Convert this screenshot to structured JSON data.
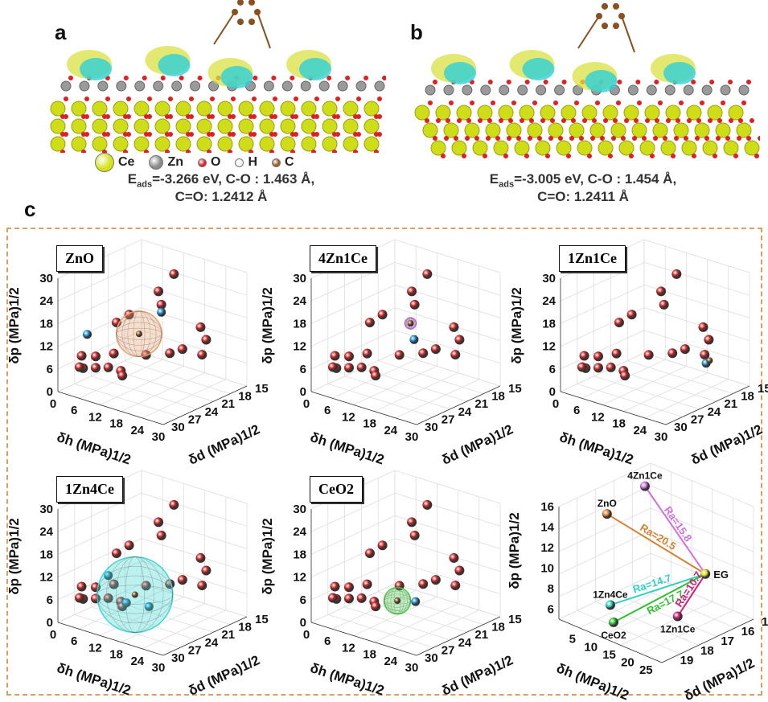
{
  "panel_labels": {
    "a": "a",
    "b": "b",
    "c": "c"
  },
  "legend": [
    {
      "label": "Ce",
      "color": "#d4e21a"
    },
    {
      "label": "Zn",
      "color": "#8a8a8a"
    },
    {
      "label": "O",
      "color": "#e02020"
    },
    {
      "label": "H",
      "color": "#f0f0f0"
    },
    {
      "label": "C",
      "color": "#9a5a2a"
    }
  ],
  "caption_a": {
    "eads_prefix": "E",
    "eads_sub": "ads",
    "line1": "=-3.266 eV, C-O : 1.463 Å,",
    "line2": "C=O: 1.2412 Å"
  },
  "caption_b": {
    "eads_prefix": "E",
    "eads_sub": "ads",
    "line1": "=-3.005 eV, C-O : 1.454 Å,",
    "line2": "C=O: 1.2411 Å"
  },
  "chart_data": [
    {
      "type": "scatter3d",
      "title": "ZnO",
      "xlabel": "δh (MPa)1/2",
      "ylabel": "δd (MPa)1/2",
      "zlabel": "δp (MPa)1/2",
      "h_ticks": [
        0,
        6,
        12,
        18,
        24,
        30
      ],
      "d_ticks": [
        30,
        27,
        24,
        21,
        18,
        15
      ],
      "p_ticks": [
        0,
        6,
        12,
        18,
        24,
        30
      ],
      "sphere": {
        "h": 12,
        "d": 23,
        "p": 14,
        "r": 6,
        "color": "#e8a070"
      },
      "good": [
        [
          12,
          19,
          17
        ],
        [
          2,
          26,
          13
        ]
      ]
    },
    {
      "type": "scatter3d",
      "title": "4Zn1Ce",
      "xlabel": "δh (MPa)1/2",
      "ylabel": "δd (MPa)1/2",
      "zlabel": "δp (MPa)1/2",
      "h_ticks": [
        0,
        6,
        12,
        18,
        24,
        30
      ],
      "d_ticks": [
        30,
        27,
        24,
        21,
        18,
        15
      ],
      "p_ticks": [
        0,
        6,
        12,
        18,
        24,
        30
      ],
      "sphere": {
        "h": 14,
        "d": 21,
        "p": 16,
        "r": 1.5,
        "color": "#d070e0"
      },
      "good": [
        [
          15,
          21,
          12
        ]
      ]
    },
    {
      "type": "scatter3d",
      "title": "1Zn1Ce",
      "xlabel": "δh (MPa)1/2",
      "ylabel": "δd (MPa)1/2",
      "zlabel": "δp (MPa)1/2",
      "h_ticks": [
        0,
        6,
        12,
        18,
        24,
        30
      ],
      "d_ticks": [
        30,
        27,
        24,
        21,
        18,
        15
      ],
      "p_ticks": [
        0,
        6,
        12,
        18,
        24,
        30
      ],
      "sphere": {
        "h": 25,
        "d": 19,
        "p": 8,
        "r": 0.6,
        "color": "#e03090"
      },
      "good": [
        [
          24,
          19,
          7
        ]
      ]
    },
    {
      "type": "scatter3d",
      "title": "1Zn4Ce",
      "xlabel": "δh (MPa)1/2",
      "ylabel": "δd (MPa)1/2",
      "zlabel": "δp (MPa)1/2",
      "h_ticks": [
        0,
        6,
        12,
        18,
        24,
        30
      ],
      "d_ticks": [
        30,
        27,
        24,
        21,
        18,
        15
      ],
      "p_ticks": [
        0,
        6,
        12,
        18,
        24,
        30
      ],
      "sphere": {
        "h": 14,
        "d": 25,
        "p": 8,
        "r": 10,
        "color": "#40d8d0"
      },
      "good": [
        [
          8,
          26,
          12
        ],
        [
          18,
          25,
          6
        ],
        [
          10,
          24,
          4
        ]
      ]
    },
    {
      "type": "scatter3d",
      "title": "CeO2",
      "xlabel": "δh (MPa)1/2",
      "ylabel": "δd (MPa)1/2",
      "zlabel": "δp (MPa)1/2",
      "h_ticks": [
        0,
        6,
        12,
        18,
        24,
        30
      ],
      "d_ticks": [
        30,
        27,
        24,
        21,
        18,
        15
      ],
      "p_ticks": [
        0,
        6,
        12,
        18,
        24,
        30
      ],
      "sphere": {
        "h": 15,
        "d": 24,
        "p": 6,
        "r": 3.5,
        "color": "#40d040"
      },
      "good": [
        [
          17,
          22,
          5
        ]
      ]
    },
    {
      "type": "scatter3d",
      "title": "",
      "xlabel": "δh (MPa)1/2",
      "ylabel": "δd (MPa)1/2",
      "zlabel": "δp (MPa)1/2",
      "h_ticks": [
        5,
        10,
        15,
        20,
        25
      ],
      "d_ticks": [
        19,
        18,
        17,
        16,
        15
      ],
      "p_ticks": [
        6,
        8,
        10,
        12,
        14,
        16
      ],
      "target": {
        "label": "EG",
        "h": 26,
        "d": 17,
        "p": 11,
        "color": "#d8d820"
      },
      "points": [
        {
          "label": "ZnO",
          "h": 2,
          "d": 17.5,
          "p": 13.7,
          "ra": "Ra=20.5",
          "color": "#d88030"
        },
        {
          "label": "4Zn1Ce",
          "h": 4,
          "d": 16,
          "p": 15.3,
          "ra": "Ra=15.8",
          "color": "#d070e0"
        },
        {
          "label": "1Zn4Ce",
          "h": 9,
          "d": 18.6,
          "p": 6.9,
          "ra": "Ra=14.7",
          "color": "#30d0c0"
        },
        {
          "label": "CeO2",
          "h": 11,
          "d": 18.8,
          "p": 5.7,
          "ra": "Ra=17.7",
          "color": "#30c030"
        },
        {
          "label": "1Zn1Ce",
          "h": 24,
          "d": 18,
          "p": 7.5,
          "ra": "Ra=10.7",
          "color": "#d0207a"
        }
      ]
    }
  ],
  "solvents": [
    [
      14,
      18,
      27
    ],
    [
      8,
      17,
      20
    ],
    [
      12,
      19,
      19
    ],
    [
      6,
      21,
      16
    ],
    [
      4,
      22,
      14
    ],
    [
      20,
      17,
      14
    ],
    [
      20,
      16,
      10
    ],
    [
      18,
      19,
      9
    ],
    [
      16,
      20,
      8
    ],
    [
      14,
      23,
      9
    ],
    [
      8,
      25,
      9
    ],
    [
      6,
      27,
      9
    ],
    [
      2,
      27,
      8
    ],
    [
      4,
      28,
      6
    ],
    [
      6,
      27,
      6
    ],
    [
      8,
      26,
      6
    ],
    [
      10,
      25,
      5
    ],
    [
      12,
      26,
      5
    ],
    [
      3,
      28,
      6
    ],
    [
      22,
      18,
      8
    ]
  ]
}
